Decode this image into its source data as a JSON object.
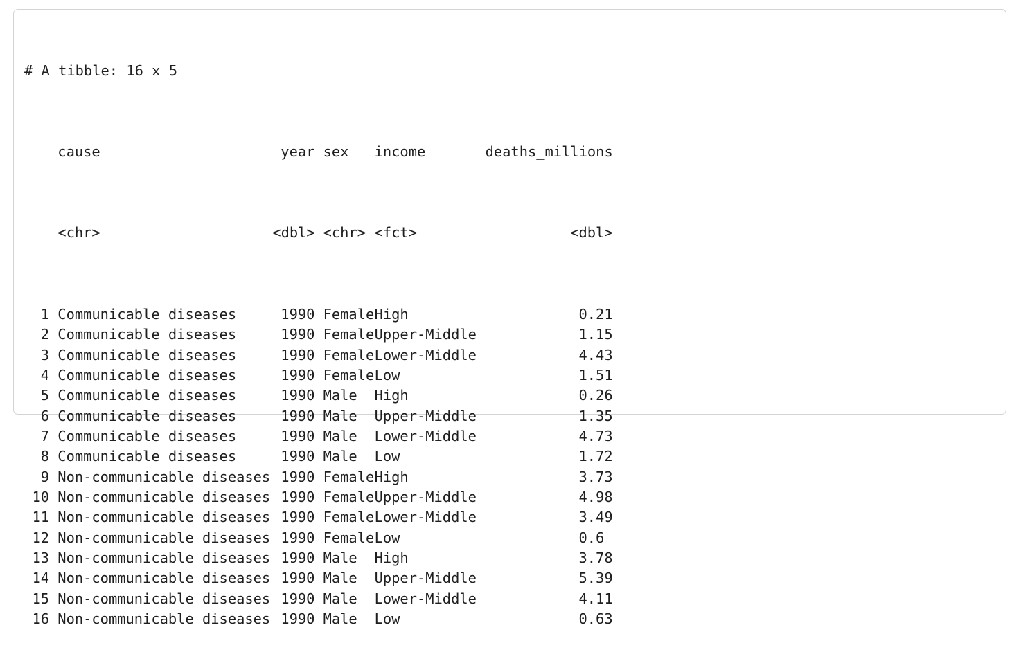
{
  "header": "# A tibble: 16 x 5",
  "columns": [
    {
      "name": "cause",
      "type": "<chr>"
    },
    {
      "name": "year",
      "type": "<dbl>"
    },
    {
      "name": "sex",
      "type": "<chr>"
    },
    {
      "name": "income",
      "type": "<fct>"
    },
    {
      "name": "deaths_millions",
      "type": "<dbl>"
    }
  ],
  "rows": [
    {
      "n": "1",
      "cause": "Communicable diseases",
      "year": "1990",
      "sex": "Female",
      "income": "High",
      "deaths": "0.21"
    },
    {
      "n": "2",
      "cause": "Communicable diseases",
      "year": "1990",
      "sex": "Female",
      "income": "Upper-Middle",
      "deaths": "1.15"
    },
    {
      "n": "3",
      "cause": "Communicable diseases",
      "year": "1990",
      "sex": "Female",
      "income": "Lower-Middle",
      "deaths": "4.43"
    },
    {
      "n": "4",
      "cause": "Communicable diseases",
      "year": "1990",
      "sex": "Female",
      "income": "Low",
      "deaths": "1.51"
    },
    {
      "n": "5",
      "cause": "Communicable diseases",
      "year": "1990",
      "sex": "Male",
      "income": "High",
      "deaths": "0.26"
    },
    {
      "n": "6",
      "cause": "Communicable diseases",
      "year": "1990",
      "sex": "Male",
      "income": "Upper-Middle",
      "deaths": "1.35"
    },
    {
      "n": "7",
      "cause": "Communicable diseases",
      "year": "1990",
      "sex": "Male",
      "income": "Lower-Middle",
      "deaths": "4.73"
    },
    {
      "n": "8",
      "cause": "Communicable diseases",
      "year": "1990",
      "sex": "Male",
      "income": "Low",
      "deaths": "1.72"
    },
    {
      "n": "9",
      "cause": "Non-communicable diseases",
      "year": "1990",
      "sex": "Female",
      "income": "High",
      "deaths": "3.73"
    },
    {
      "n": "10",
      "cause": "Non-communicable diseases",
      "year": "1990",
      "sex": "Female",
      "income": "Upper-Middle",
      "deaths": "4.98"
    },
    {
      "n": "11",
      "cause": "Non-communicable diseases",
      "year": "1990",
      "sex": "Female",
      "income": "Lower-Middle",
      "deaths": "3.49"
    },
    {
      "n": "12",
      "cause": "Non-communicable diseases",
      "year": "1990",
      "sex": "Female",
      "income": "Low",
      "deaths": "0.6 "
    },
    {
      "n": "13",
      "cause": "Non-communicable diseases",
      "year": "1990",
      "sex": "Male",
      "income": "High",
      "deaths": "3.78"
    },
    {
      "n": "14",
      "cause": "Non-communicable diseases",
      "year": "1990",
      "sex": "Male",
      "income": "Upper-Middle",
      "deaths": "5.39"
    },
    {
      "n": "15",
      "cause": "Non-communicable diseases",
      "year": "1990",
      "sex": "Male",
      "income": "Lower-Middle",
      "deaths": "4.11"
    },
    {
      "n": "16",
      "cause": "Non-communicable diseases",
      "year": "1990",
      "sex": "Male",
      "income": "Low",
      "deaths": "0.63"
    }
  ]
}
